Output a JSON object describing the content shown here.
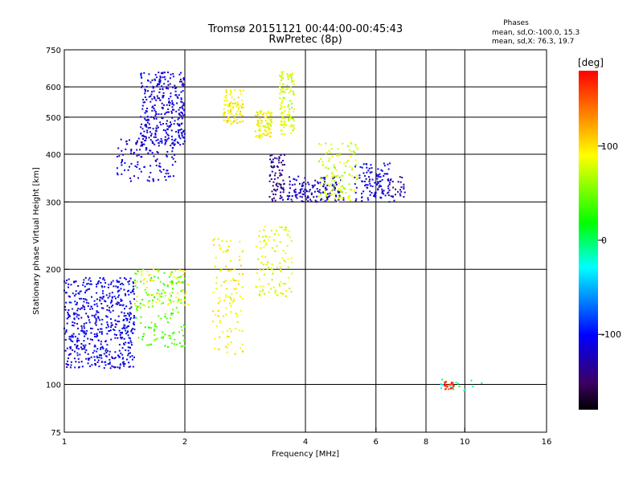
{
  "chart_data": {
    "type": "scatter",
    "title": "Tromsø 20151121 00:44:00-00:45:43",
    "subtitle": "RwPretec (8p)",
    "xlabel": "Frequency [MHz]",
    "ylabel": "Stationary phase Virtual Height [km]",
    "x_scale": "log",
    "y_scale": "log",
    "xlim": [
      1,
      16
    ],
    "ylim": [
      75,
      750
    ],
    "x_ticks": [
      "1",
      "2",
      "4",
      "6",
      "8",
      "10",
      "16"
    ],
    "y_ticks": [
      "75",
      "100",
      "200",
      "300",
      "400",
      "500",
      "600",
      "750"
    ],
    "grid": true,
    "legend": {
      "title": "Phases",
      "lines": [
        "mean, sd,O:-100.0, 15.3",
        "mean, sd,X:  76.3, 19.7"
      ],
      "position": "top-right"
    },
    "colorbar": {
      "title": "[deg]",
      "ticks": [
        "100",
        "0",
        "-100"
      ],
      "tick_values": [
        100,
        0,
        -100
      ],
      "range": [
        -180,
        180
      ],
      "colors": [
        "#000000",
        "#3c0064",
        "#0000ff",
        "#00ffff",
        "#00ff00",
        "#ffff00",
        "#ff0000"
      ]
    },
    "clusters": [
      {
        "f": [
          1.0,
          1.5
        ],
        "h": [
          110,
          190
        ],
        "phase": -108,
        "count": 560
      },
      {
        "f": [
          1.35,
          1.9
        ],
        "h": [
          340,
          440
        ],
        "phase": -112,
        "count": 120
      },
      {
        "f": [
          1.55,
          2.0
        ],
        "h": [
          420,
          655
        ],
        "phase": -115,
        "count": 320
      },
      {
        "f": [
          1.5,
          2.0
        ],
        "h": [
          125,
          200
        ],
        "phase": 40,
        "count": 140
      },
      {
        "f": [
          1.5,
          2.05
        ],
        "h": [
          160,
          200
        ],
        "phase": 88,
        "count": 70
      },
      {
        "f": [
          2.5,
          2.8
        ],
        "h": [
          480,
          590
        ],
        "phase": 95,
        "count": 90
      },
      {
        "f": [
          3.0,
          3.3
        ],
        "h": [
          440,
          520
        ],
        "phase": 88,
        "count": 90
      },
      {
        "f": [
          3.45,
          3.75
        ],
        "h": [
          450,
          660
        ],
        "phase": 80,
        "count": 110
      },
      {
        "f": [
          3.25,
          3.55
        ],
        "h": [
          300,
          400
        ],
        "phase": -140,
        "count": 80
      },
      {
        "f": [
          3.6,
          5.0
        ],
        "h": [
          300,
          350
        ],
        "phase": -120,
        "count": 140
      },
      {
        "f": [
          4.3,
          5.4
        ],
        "h": [
          300,
          430
        ],
        "phase": 75,
        "count": 130
      },
      {
        "f": [
          5.3,
          6.5
        ],
        "h": [
          300,
          380
        ],
        "phase": -112,
        "count": 110
      },
      {
        "f": [
          6.4,
          7.1
        ],
        "h": [
          300,
          350
        ],
        "phase": -130,
        "count": 30
      },
      {
        "f": [
          2.35,
          2.8
        ],
        "h": [
          120,
          240
        ],
        "phase": 92,
        "count": 110
      },
      {
        "f": [
          3.0,
          3.7
        ],
        "h": [
          170,
          260
        ],
        "phase": 82,
        "count": 110
      },
      {
        "f": [
          8.9,
          9.4
        ],
        "h": [
          97,
          102
        ],
        "phase": 165,
        "count": 30
      },
      {
        "f": [
          8.4,
          11.4
        ],
        "h": [
          96,
          103
        ],
        "phase": -15,
        "count": 14
      }
    ]
  }
}
